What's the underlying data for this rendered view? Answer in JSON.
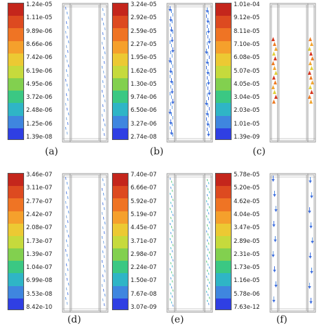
{
  "panels": [
    {
      "caption": "(a)",
      "ticks": [
        "1.24e-05",
        "1.11e-05",
        "9.89e-06",
        "8.66e-06",
        "7.42e-06",
        "6.19e-06",
        "4.95e-06",
        "3.72e-06",
        "2.48e-06",
        "1.25e-06",
        "1.39e-08"
      ],
      "vector_color": "blue",
      "vector_density": "sparse-dashes"
    },
    {
      "caption": "(b)",
      "ticks": [
        "3.24e-05",
        "2.92e-05",
        "2.59e-05",
        "2.27e-05",
        "1.95e-05",
        "1.62e-05",
        "1.30e-05",
        "9.74e-06",
        "6.50e-06",
        "3.27e-06",
        "2.74e-08"
      ],
      "vector_color": "blue",
      "vector_density": "dense-down-arrows"
    },
    {
      "caption": "(c)",
      "ticks": [
        "1.01e-04",
        "9.12e-05",
        "8.11e-05",
        "7.10e-05",
        "6.08e-05",
        "5.07e-05",
        "4.05e-05",
        "3.04e-05",
        "2.03e-05",
        "1.01e-05",
        "1.39e-09"
      ],
      "vector_color": "red-orange",
      "vector_density": "upper-arrows"
    },
    {
      "caption": "(d)",
      "ticks": [
        "3.46e-07",
        "3.11e-07",
        "2.77e-07",
        "2.42e-07",
        "2.08e-07",
        "1.73e-07",
        "1.39e-07",
        "1.04e-07",
        "6.99e-08",
        "3.53e-08",
        "8.42e-10"
      ],
      "vector_color": "blue",
      "vector_density": "sparse-dashes"
    },
    {
      "caption": "(e)",
      "ticks": [
        "7.40e-07",
        "6.66e-07",
        "5.92e-07",
        "5.19e-07",
        "4.45e-07",
        "3.71e-07",
        "2.98e-07",
        "2.24e-07",
        "1.50e-07",
        "7.67e-08",
        "3.07e-09"
      ],
      "vector_color": "green-blue",
      "vector_density": "dense-dashes"
    },
    {
      "caption": "(f)",
      "ticks": [
        "5.78e-05",
        "5.20e-05",
        "4.62e-05",
        "4.04e-05",
        "3.47e-05",
        "2.89e-05",
        "2.31e-05",
        "1.73e-05",
        "1.16e-05",
        "5.78e-06",
        "7.63e-12"
      ],
      "vector_color": "blue",
      "vector_density": "spaced-down-arrows"
    }
  ],
  "colormap": [
    "#c4261c",
    "#dd4a20",
    "#ef7424",
    "#f5a02c",
    "#ecc933",
    "#c6da3c",
    "#82d04f",
    "#3bc883",
    "#2fb5c6",
    "#3f86df",
    "#2f3fe3"
  ]
}
